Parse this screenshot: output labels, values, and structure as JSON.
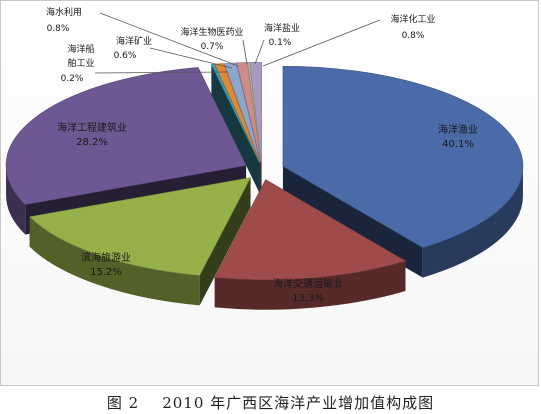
{
  "chart_data": {
    "type": "pie",
    "categories": [
      "海洋渔业",
      "海洋交通运输业",
      "滨海旅游业",
      "海洋工程建筑业",
      "海洋船舶工业",
      "海洋矿业",
      "海水利用",
      "海洋生物医药业",
      "海洋盐业",
      "海洋化工业"
    ],
    "label_lines": [
      [
        "海洋渔业"
      ],
      [
        "海洋交通运输业"
      ],
      [
        "滨海旅游业"
      ],
      [
        "海洋工程建筑业"
      ],
      [
        "海洋船",
        "舶工业"
      ],
      [
        "海洋矿业"
      ],
      [
        "海水利用"
      ],
      [
        "海洋生物医药业"
      ],
      [
        "海洋盐业"
      ],
      [
        "海洋化工业"
      ]
    ],
    "values": [
      40.1,
      13.3,
      15.2,
      28.2,
      0.2,
      0.6,
      0.8,
      0.7,
      0.1,
      0.8
    ],
    "value_labels": [
      "40.1%",
      "13.3%",
      "15.2%",
      "28.2%",
      "0.2%",
      "0.6%",
      "0.8%",
      "0.7%",
      "0.1%",
      "0.8%"
    ],
    "colors": [
      "#4a6ba8",
      "#a04b4b",
      "#96b04a",
      "#6d5894",
      "#3f9fb8",
      "#e08a36",
      "#8fa6cc",
      "#cc8c8c",
      "#b7c98a",
      "#a898c4"
    ],
    "exploded": true,
    "three_d": true
  },
  "caption": {
    "figure_no": "图 2",
    "title": "2010 年广西区海洋产业增加值构成图"
  }
}
